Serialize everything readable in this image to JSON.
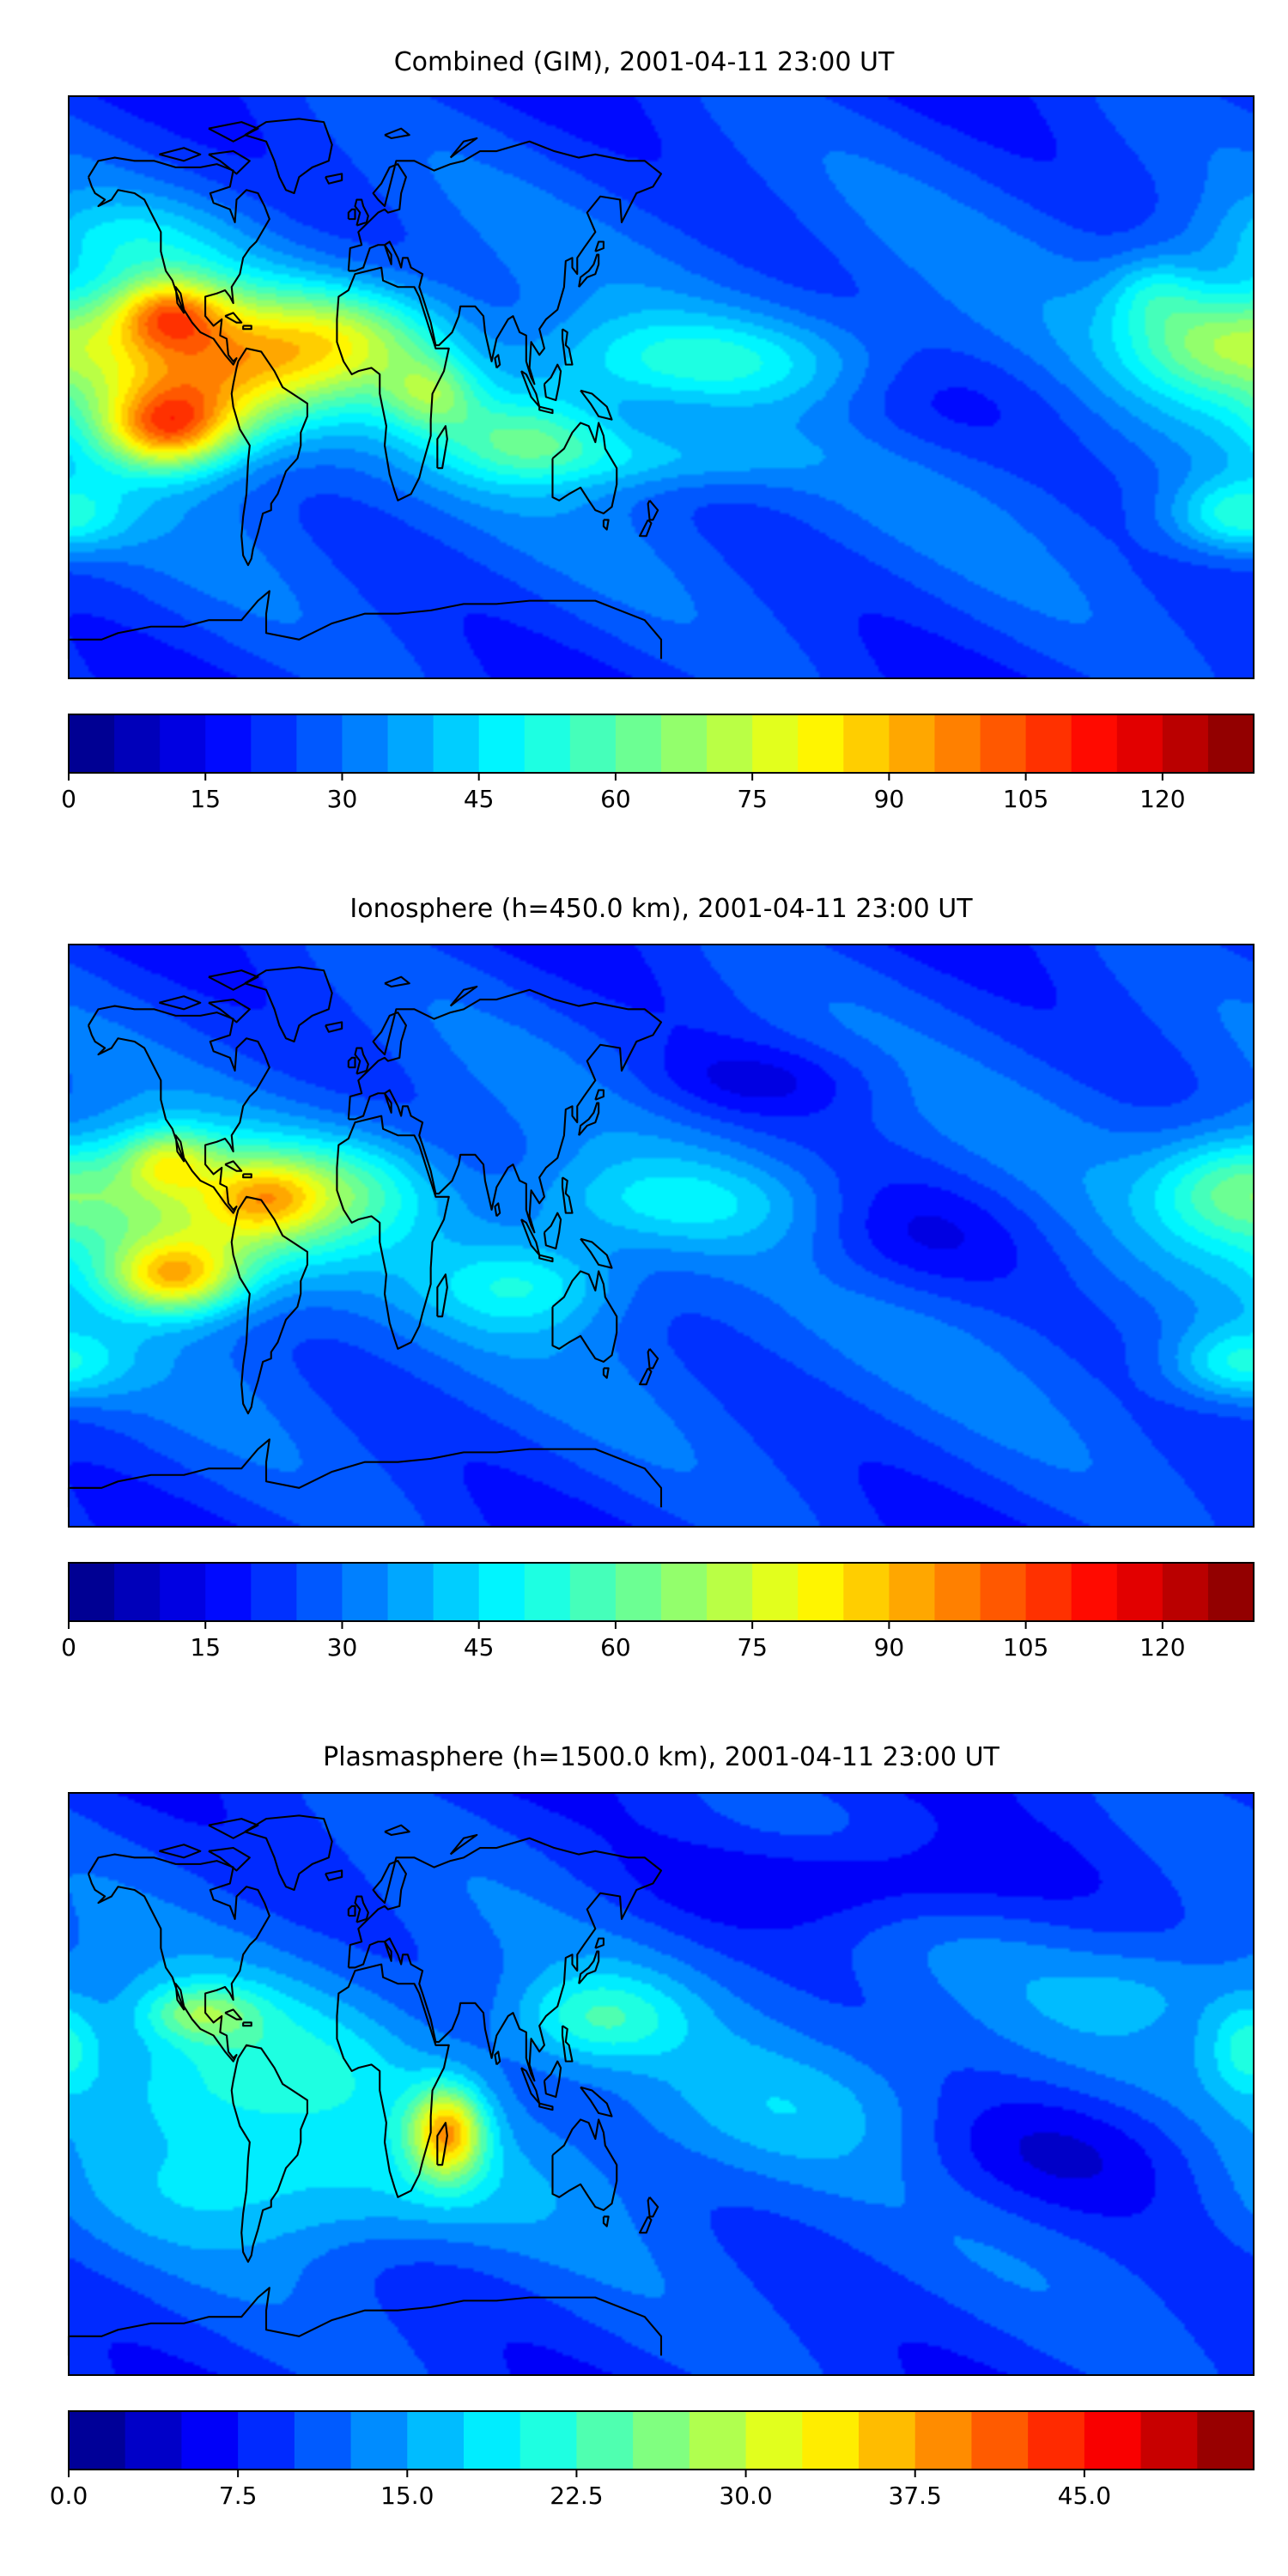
{
  "figure": {
    "panels": [
      {
        "title": "Combined (GIM), 2001-04-11 23:00 UT",
        "colorbar": {
          "vmin": 0,
          "vmax": 130,
          "levels": 26,
          "ticks": [
            0,
            15,
            30,
            45,
            60,
            75,
            90,
            105,
            120
          ],
          "tick_labels": [
            "0",
            "15",
            "30",
            "45",
            "60",
            "75",
            "90",
            "105",
            "120"
          ]
        },
        "features": [
          {
            "lon": -140,
            "lat": 5,
            "rl": 26,
            "rt": 16,
            "amp": 60
          },
          {
            "lon": -150,
            "lat": 23,
            "rl": 12,
            "rt": 8,
            "amp": 40
          },
          {
            "lon": -150,
            "lat": -13,
            "rl": 14,
            "rt": 9,
            "amp": 50
          },
          {
            "lon": -95,
            "lat": 15,
            "rl": 22,
            "rt": 12,
            "amp": 35
          },
          {
            "lon": -70,
            "lat": -2,
            "rl": 10,
            "rt": 8,
            "amp": 25
          },
          {
            "lon": -40,
            "lat": -15,
            "rl": 20,
            "rt": 10,
            "amp": 28
          },
          {
            "lon": 10,
            "lat": 8,
            "rl": 40,
            "rt": 10,
            "amp": 20
          },
          {
            "lon": 0,
            "lat": -22,
            "rl": 30,
            "rt": 7,
            "amp": 14
          },
          {
            "lon": 170,
            "lat": 15,
            "rl": 20,
            "rt": 12,
            "amp": 35
          },
          {
            "lon": 150,
            "lat": 30,
            "rl": 10,
            "rt": 8,
            "amp": 15
          },
          {
            "lon": 175,
            "lat": -40,
            "rl": 15,
            "rt": 8,
            "amp": 25
          },
          {
            "lon": -165,
            "lat": 45,
            "rl": 25,
            "rt": 10,
            "amp": 15
          },
          {
            "lon": 75,
            "lat": -5,
            "rl": 30,
            "rt": 14,
            "amp": -8
          }
        ]
      },
      {
        "title": "Ionosphere  (h=450.0 km), 2001-04-11 23:00 UT",
        "colorbar": {
          "vmin": 0,
          "vmax": 130,
          "levels": 26,
          "ticks": [
            0,
            15,
            30,
            45,
            60,
            75,
            90,
            105,
            120
          ],
          "tick_labels": [
            "0",
            "15",
            "30",
            "45",
            "60",
            "75",
            "90",
            "105",
            "120"
          ]
        },
        "features": [
          {
            "lon": -140,
            "lat": 5,
            "rl": 26,
            "rt": 16,
            "amp": 40
          },
          {
            "lon": -150,
            "lat": 23,
            "rl": 10,
            "rt": 7,
            "amp": 28
          },
          {
            "lon": -148,
            "lat": -13,
            "rl": 14,
            "rt": 8,
            "amp": 45
          },
          {
            "lon": -120,
            "lat": 12,
            "rl": 12,
            "rt": 8,
            "amp": 25
          },
          {
            "lon": -95,
            "lat": 15,
            "rl": 20,
            "rt": 12,
            "amp": 22
          },
          {
            "lon": -40,
            "lat": -15,
            "rl": 20,
            "rt": 10,
            "amp": 20
          },
          {
            "lon": 0,
            "lat": 10,
            "rl": 35,
            "rt": 10,
            "amp": 15
          },
          {
            "lon": 175,
            "lat": 15,
            "rl": 18,
            "rt": 12,
            "amp": 30
          },
          {
            "lon": 175,
            "lat": -40,
            "rl": 15,
            "rt": 8,
            "amp": 22
          },
          {
            "lon": 75,
            "lat": 0,
            "rl": 28,
            "rt": 14,
            "amp": -12
          },
          {
            "lon": 30,
            "lat": 48,
            "rl": 25,
            "rt": 8,
            "amp": -10
          }
        ]
      },
      {
        "title": "Plasmasphere (h=1500.0 km), 2001-04-11 23:00 UT",
        "colorbar": {
          "vmin": 0,
          "vmax": 52.5,
          "levels": 21,
          "ticks": [
            0,
            7.5,
            15,
            22.5,
            30,
            37.5,
            45
          ],
          "tick_labels": [
            "0.0",
            "7.5",
            "15.0",
            "22.5",
            "30.0",
            "37.5",
            "45.0"
          ]
        },
        "features": [
          {
            "lon": -65,
            "lat": -15,
            "rl": 8,
            "rt": 10,
            "amp": 22
          },
          {
            "lon": -130,
            "lat": 0,
            "rl": 35,
            "rt": 20,
            "amp": 10
          },
          {
            "lon": -140,
            "lat": 22,
            "rl": 12,
            "rt": 6,
            "amp": 10
          },
          {
            "lon": -20,
            "lat": 20,
            "rl": 18,
            "rt": 10,
            "amp": 10
          },
          {
            "lon": -100,
            "lat": -35,
            "rl": 40,
            "rt": 12,
            "amp": 6
          },
          {
            "lon": 178,
            "lat": 12,
            "rl": 8,
            "rt": 10,
            "amp": 8
          },
          {
            "lon": 40,
            "lat": -10,
            "rl": 40,
            "rt": 15,
            "amp": 4
          },
          {
            "lon": 150,
            "lat": 30,
            "rl": 25,
            "rt": 10,
            "amp": 4
          },
          {
            "lon": 120,
            "lat": -20,
            "rl": 40,
            "rt": 15,
            "amp": -6
          },
          {
            "lon": 60,
            "lat": 62,
            "rl": 40,
            "rt": 10,
            "amp": -6
          }
        ]
      }
    ]
  },
  "chart_data": [
    {
      "type": "heatmap",
      "title": "Combined (GIM), 2001-04-11 23:00 UT",
      "projection": "PlateCarree global map with coastlines",
      "lon_range": [
        -180,
        180
      ],
      "lat_range": [
        -90,
        90
      ],
      "colormap": "jet",
      "colorbar_range": [
        0,
        130
      ],
      "colorbar_ticks": [
        0,
        15,
        30,
        45,
        60,
        75,
        90,
        105,
        120
      ],
      "approx_max_region": {
        "lon": -140,
        "lat": -13,
        "value": 125
      },
      "approx_min_region": {
        "lon": 80,
        "lat": -10,
        "value": 18
      }
    },
    {
      "type": "heatmap",
      "title": "Ionosphere  (h=450.0 km), 2001-04-11 23:00 UT",
      "projection": "PlateCarree global map with coastlines",
      "lon_range": [
        -180,
        180
      ],
      "lat_range": [
        -90,
        90
      ],
      "colormap": "jet",
      "colorbar_range": [
        0,
        130
      ],
      "colorbar_ticks": [
        0,
        15,
        30,
        45,
        60,
        75,
        90,
        105,
        120
      ],
      "approx_max_region": {
        "lon": -145,
        "lat": -13,
        "value": 92
      },
      "approx_min_region": {
        "lon": 75,
        "lat": 0,
        "value": 8
      }
    },
    {
      "type": "heatmap",
      "title": "Plasmasphere (h=1500.0 km), 2001-04-11 23:00 UT",
      "projection": "PlateCarree global map with coastlines",
      "lon_range": [
        -180,
        180
      ],
      "lat_range": [
        -90,
        90
      ],
      "colormap": "jet",
      "colorbar_range": [
        0,
        52.5
      ],
      "colorbar_ticks": [
        0,
        7.5,
        15,
        22.5,
        30,
        37.5,
        45
      ],
      "approx_max_region": {
        "lon": -65,
        "lat": -15,
        "value": 42
      },
      "approx_min_region": {
        "lon": 120,
        "lat": -20,
        "value": 5
      }
    }
  ]
}
